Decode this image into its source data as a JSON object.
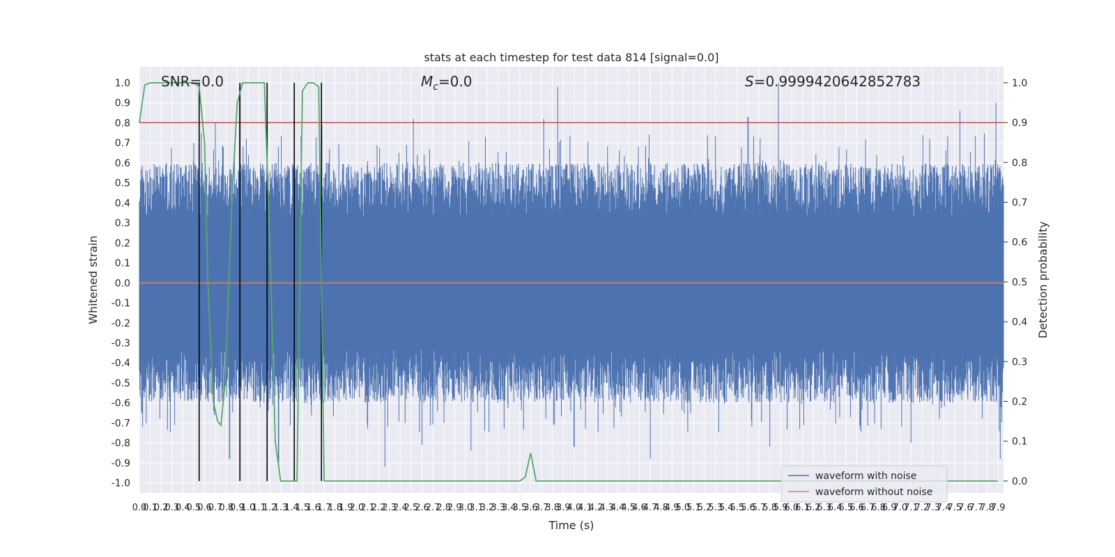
{
  "chart_data": {
    "type": "line",
    "title": "stats at each timestep for test data 814 [signal=0.0]",
    "xlabel": "Time (s)",
    "ylabel": "Whitened strain",
    "y2label": "Detection probability",
    "xlim": [
      0.0,
      7.95
    ],
    "ylim": [
      -1.05,
      1.08
    ],
    "y2lim": [
      -0.03,
      1.04
    ],
    "x_ticks": [
      0.0,
      0.1,
      0.2,
      0.3,
      0.4,
      0.5,
      0.6,
      0.7,
      0.8,
      0.9,
      1.0,
      1.1,
      1.2,
      1.3,
      1.4,
      1.5,
      1.6,
      1.7,
      1.8,
      1.9,
      2.0,
      2.1,
      2.2,
      2.3,
      2.4,
      2.5,
      2.6,
      2.7,
      2.8,
      2.9,
      3.0,
      3.1,
      3.2,
      3.3,
      3.4,
      3.5,
      3.6,
      3.7,
      3.8,
      3.9,
      4.0,
      4.1,
      4.2,
      4.3,
      4.4,
      4.5,
      4.6,
      4.7,
      4.8,
      4.9,
      5.0,
      5.1,
      5.2,
      5.3,
      5.4,
      5.5,
      5.6,
      5.7,
      5.8,
      5.9,
      6.0,
      6.1,
      6.2,
      6.3,
      6.4,
      6.5,
      6.6,
      6.7,
      6.8,
      6.9,
      7.0,
      7.1,
      7.2,
      7.3,
      7.4,
      7.5,
      7.6,
      7.7,
      7.8,
      7.9
    ],
    "y_ticks": [
      1.0,
      0.9,
      0.8,
      0.7,
      0.6,
      0.5,
      0.4,
      0.3,
      0.2,
      0.1,
      0.0,
      -0.1,
      -0.2,
      -0.3,
      -0.4,
      -0.5,
      -0.6,
      -0.7,
      -0.8,
      -0.9,
      -1.0
    ],
    "y2_ticks": [
      1.0,
      0.9,
      0.8,
      0.7,
      0.6,
      0.5,
      0.4,
      0.3,
      0.2,
      0.1,
      0.0
    ],
    "annotations": {
      "snr": "SNR=0.0",
      "mc_symbol": "M",
      "mc_subscript": "c",
      "mc_value": "=0.0",
      "s_symbol": "S",
      "s_value": "=0.9999420642852783"
    },
    "threshold": 0.9,
    "vertical_markers": [
      0.55,
      0.925,
      1.175,
      1.425,
      1.675
    ],
    "waveform_without_noise": {
      "value": 0.0
    },
    "waveform_with_noise": {
      "description_free": true,
      "envelope_upper_typical": 0.6,
      "envelope_lower_typical": -0.6,
      "peaks": [
        {
          "x": 0.5,
          "y": 0.7
        },
        {
          "x": 0.57,
          "y": 0.75
        },
        {
          "x": 0.7,
          "y": 0.8
        },
        {
          "x": 0.92,
          "y": 0.98
        },
        {
          "x": 1.68,
          "y": 0.79
        },
        {
          "x": 2.52,
          "y": 0.82
        },
        {
          "x": 3.72,
          "y": 0.82
        },
        {
          "x": 3.85,
          "y": 0.98
        },
        {
          "x": 5.6,
          "y": 0.83
        },
        {
          "x": 5.88,
          "y": 1.0
        },
        {
          "x": 7.55,
          "y": 0.86
        },
        {
          "x": 7.88,
          "y": 0.9
        }
      ],
      "troughs": [
        {
          "x": 0.03,
          "y": -0.72
        },
        {
          "x": 0.55,
          "y": -0.75
        },
        {
          "x": 0.83,
          "y": -0.88
        },
        {
          "x": 1.28,
          "y": -0.9
        },
        {
          "x": 2.26,
          "y": -0.92
        },
        {
          "x": 2.6,
          "y": -0.81
        },
        {
          "x": 3.05,
          "y": -0.84
        },
        {
          "x": 4.0,
          "y": -0.82
        },
        {
          "x": 4.7,
          "y": -0.88
        },
        {
          "x": 5.8,
          "y": -0.82
        },
        {
          "x": 7.1,
          "y": -0.8
        },
        {
          "x": 7.92,
          "y": -0.88
        }
      ]
    },
    "detection_probability": {
      "x": [
        0.0,
        0.05,
        0.1,
        0.2,
        0.3,
        0.4,
        0.5,
        0.55,
        0.6,
        0.63,
        0.68,
        0.72,
        0.75,
        0.79,
        0.85,
        0.9,
        0.95,
        1.0,
        1.05,
        1.1,
        1.15,
        1.2,
        1.25,
        1.3,
        1.35,
        1.4,
        1.45,
        1.5,
        1.55,
        1.6,
        1.65,
        1.7,
        1.75,
        1.8,
        2.0,
        2.5,
        3.0,
        3.5,
        3.55,
        3.6,
        3.65,
        3.7,
        4.0,
        5.0,
        6.0,
        7.0,
        7.9
      ],
      "y": [
        0.9,
        0.995,
        1.0,
        1.0,
        1.0,
        1.0,
        1.0,
        0.99,
        0.85,
        0.5,
        0.2,
        0.15,
        0.14,
        0.25,
        0.7,
        0.95,
        1.0,
        1.0,
        1.0,
        1.0,
        1.0,
        0.6,
        0.1,
        0.0,
        0.0,
        0.0,
        0.0,
        0.98,
        1.0,
        1.0,
        0.99,
        0.0,
        0.0,
        0.0,
        0.0,
        0.0,
        0.0,
        0.0,
        0.01,
        0.07,
        0.0,
        0.0,
        0.0,
        0.0,
        0.0,
        0.0,
        0.0
      ]
    },
    "grid": true,
    "legend_position": "bottom-right",
    "legend": [
      "waveform with noise",
      "waveform without noise"
    ],
    "colors": {
      "noise": "#4c72b0",
      "clean": "#dd8452",
      "probability": "#55a868",
      "threshold": "#c44e52",
      "markers": "#000000",
      "plot_bg": "#eaeaf2",
      "grid": "#ffffff"
    }
  }
}
